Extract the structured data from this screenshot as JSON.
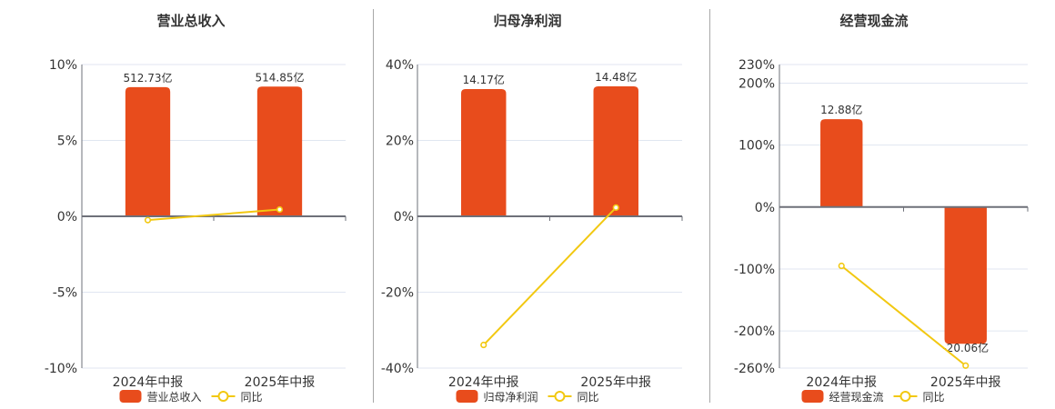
{
  "panels": [
    {
      "title": "营业总收入",
      "legend": {
        "bar_label": "营业总收入",
        "line_label": "同比"
      }
    },
    {
      "title": "归母净利润",
      "legend": {
        "bar_label": "归母净利润",
        "line_label": "同比"
      }
    },
    {
      "title": "经营现金流",
      "legend": {
        "bar_label": "经营现金流",
        "line_label": "同比"
      }
    }
  ],
  "colors": {
    "bar": "#E84C1C",
    "line": "#F2C811",
    "axis": "#6E7079",
    "grid": "#E0E6F1",
    "text": "#333333",
    "separator": "#A8A8A8"
  },
  "chart_data": [
    {
      "type": "bar+line",
      "title": "营业总收入",
      "categories": [
        "2024年中报",
        "2025年中报"
      ],
      "series": [
        {
          "name": "营业总收入",
          "type": "bar",
          "unit": "亿",
          "values": [
            512.73,
            514.85
          ],
          "labels": [
            "512.73亿",
            "514.85亿"
          ]
        },
        {
          "name": "同比",
          "type": "line",
          "unit": "%",
          "values": [
            -0.25,
            0.45
          ]
        }
      ],
      "yticks": [
        10,
        5,
        0,
        -5,
        -10
      ],
      "ylim": [
        -10,
        10
      ],
      "ylabel_format": "%",
      "grid": true,
      "legend_position": "bottom"
    },
    {
      "type": "bar+line",
      "title": "归母净利润",
      "categories": [
        "2024年中报",
        "2025年中报"
      ],
      "series": [
        {
          "name": "归母净利润",
          "type": "bar",
          "unit": "亿",
          "values": [
            14.17,
            14.48
          ],
          "labels": [
            "14.17亿",
            "14.48亿"
          ]
        },
        {
          "name": "同比",
          "type": "line",
          "unit": "%",
          "values": [
            -33.9,
            2.3
          ]
        }
      ],
      "yticks": [
        40,
        20,
        0,
        -20,
        -40
      ],
      "ylim": [
        -40,
        40
      ],
      "ylabel_format": "%",
      "grid": true,
      "legend_position": "bottom"
    },
    {
      "type": "bar+line",
      "title": "经营现金流",
      "categories": [
        "2024年中报",
        "2025年中报"
      ],
      "series": [
        {
          "name": "经营现金流",
          "type": "bar",
          "unit": "亿",
          "values": [
            12.88,
            -20.06
          ],
          "labels": [
            "12.88亿",
            "-20.06亿"
          ]
        },
        {
          "name": "同比",
          "type": "line",
          "unit": "%",
          "values": [
            -95,
            -256
          ]
        }
      ],
      "yticks": [
        230,
        200,
        100,
        0,
        -100,
        -200,
        -260
      ],
      "ylim": [
        -260,
        230
      ],
      "ylabel_format": "%",
      "grid": true,
      "legend_position": "bottom"
    }
  ]
}
